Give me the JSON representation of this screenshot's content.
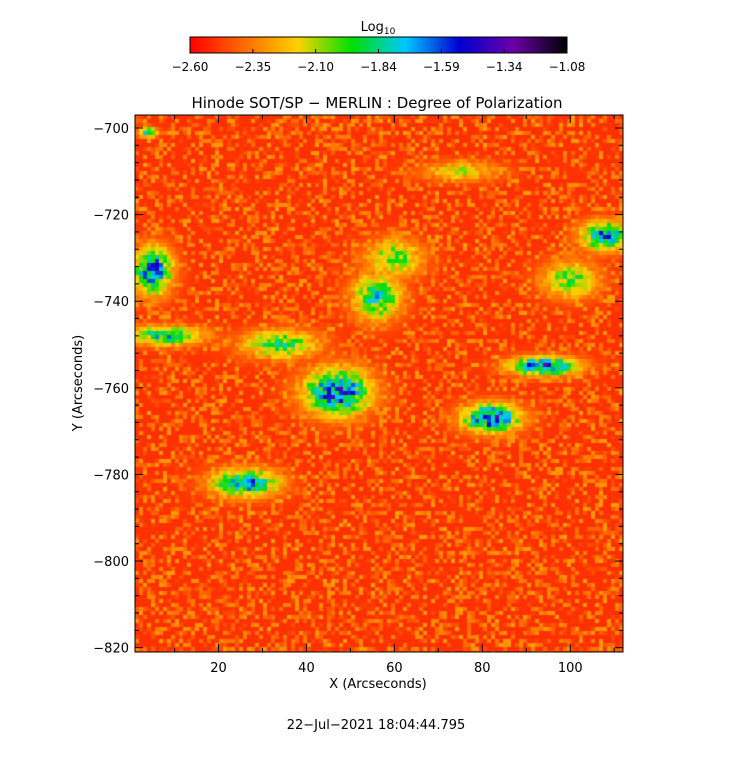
{
  "chart_data": {
    "type": "heatmap",
    "title": "Hinode SOT/SP − MERLIN : Degree of Polarization",
    "xlabel": "X (Arcseconds)",
    "ylabel": "Y (Arcseconds)",
    "xlim": [
      1,
      112
    ],
    "ylim": [
      -821,
      -697
    ],
    "xticks": [
      20,
      40,
      60,
      80,
      100
    ],
    "yticks": [
      -700,
      -720,
      -740,
      -760,
      -780,
      -800,
      -820
    ],
    "colorbar": {
      "label_base": "Log",
      "label_sub": "10",
      "min": -2.6,
      "max": -1.08,
      "ticks": [
        "−2.60",
        "−2.35",
        "−2.10",
        "−1.84",
        "−1.59",
        "−1.34",
        "−1.08"
      ],
      "colormap": [
        "#ff0000",
        "#ff6a00",
        "#ffd200",
        "#00e000",
        "#00c8ff",
        "#0000d0",
        "#6a00a8",
        "#000000"
      ]
    },
    "timestamp": "22−Jul−2021 18:04:44.795",
    "background_level": -2.5,
    "features": [
      {
        "x": 47,
        "y": -761,
        "rx": 7,
        "ry": 5,
        "peak": -1.4
      },
      {
        "x": 82,
        "y": -767,
        "rx": 6,
        "ry": 3,
        "peak": -1.35
      },
      {
        "x": 94,
        "y": -755,
        "rx": 7,
        "ry": 2,
        "peak": -1.4
      },
      {
        "x": 26,
        "y": -782,
        "rx": 7,
        "ry": 3,
        "peak": -1.55
      },
      {
        "x": 5,
        "y": -733,
        "rx": 4,
        "ry": 5,
        "peak": -1.45
      },
      {
        "x": 108,
        "y": -725,
        "rx": 5,
        "ry": 3,
        "peak": -1.5
      },
      {
        "x": 56,
        "y": -739,
        "rx": 5,
        "ry": 5,
        "peak": -1.7
      },
      {
        "x": 8,
        "y": -748,
        "rx": 8,
        "ry": 2,
        "peak": -1.7
      },
      {
        "x": 34,
        "y": -750,
        "rx": 8,
        "ry": 3,
        "peak": -1.8
      },
      {
        "x": 60,
        "y": -730,
        "rx": 6,
        "ry": 4,
        "peak": -1.9
      },
      {
        "x": 75,
        "y": -710,
        "rx": 8,
        "ry": 2,
        "peak": -2.05
      },
      {
        "x": 100,
        "y": -735,
        "rx": 6,
        "ry": 4,
        "peak": -1.9
      },
      {
        "x": 4,
        "y": -701,
        "rx": 2,
        "ry": 1,
        "peak": -1.6
      }
    ]
  }
}
